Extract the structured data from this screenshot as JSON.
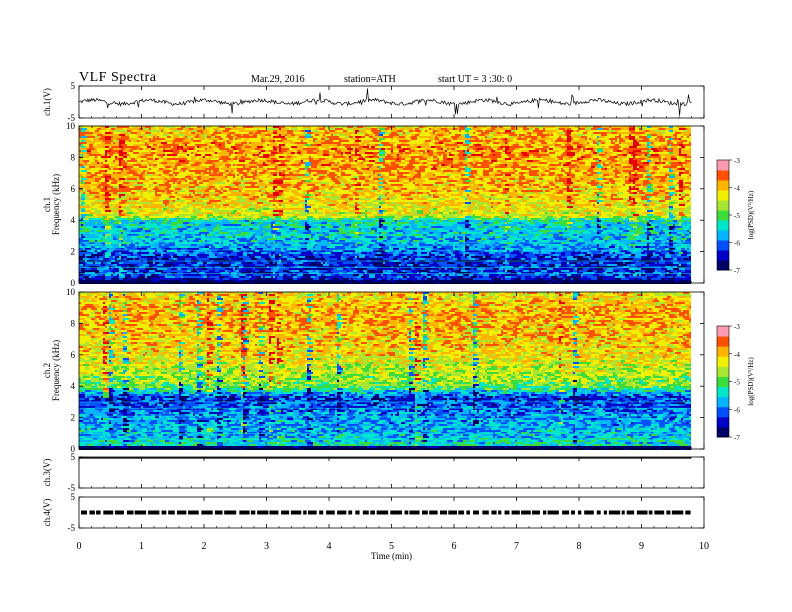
{
  "header": {
    "title": "VLF  Spectra",
    "date": "Mar.29, 2016",
    "station": "station=ATH",
    "start_ut": "start  UT  =   3  :30: 0"
  },
  "colors": {
    "axis": "#000000",
    "colormap": [
      "#000066",
      "#0000c8",
      "#0050ff",
      "#00b4ff",
      "#00e6c8",
      "#3cdc3c",
      "#a8e632",
      "#f0f000",
      "#ffb400",
      "#ff5000",
      "#e60000",
      "#ff9ab0",
      "#ffffff"
    ]
  },
  "chart_data": {
    "type": "heatmap",
    "xlabel": "Time  (min)",
    "xlim": [
      0,
      10
    ],
    "xticks": [
      "0",
      "1",
      "2",
      "3",
      "4",
      "5",
      "6",
      "7",
      "8",
      "9",
      "10"
    ],
    "panels": [
      {
        "id": "ch1v",
        "kind": "waveform",
        "ylabel": "ch.1(V)",
        "ylim": [
          -5,
          5
        ],
        "yticks": [
          "5",
          "-5"
        ],
        "trace_mean": 0,
        "data_end_min": 9.8
      },
      {
        "id": "ch1spec",
        "kind": "spectrogram",
        "ylabel": "ch.1\nFrequency  (kHz)",
        "ylabel_lines": [
          "ch.1",
          "Frequency  (kHz)"
        ],
        "ylim": [
          0,
          10
        ],
        "yticks": [
          "0",
          "2",
          "4",
          "6",
          "8",
          "10"
        ],
        "data_end_min": 9.8,
        "profile": [
          {
            "f": 0,
            "log_psd": -7
          },
          {
            "f": 0.5,
            "log_psd": -6.2
          },
          {
            "f": 1.5,
            "log_psd": -6.4
          },
          {
            "f": 2.5,
            "log_psd": -5.7
          },
          {
            "f": 4.0,
            "log_psd": -5.4
          },
          {
            "f": 4.3,
            "log_psd": -4.4
          },
          {
            "f": 6.0,
            "log_psd": -4.0
          },
          {
            "f": 8.5,
            "log_psd": -3.8
          },
          {
            "f": 10,
            "log_psd": -4.1
          }
        ]
      },
      {
        "id": "ch2spec",
        "kind": "spectrogram",
        "ylabel": "ch.2\nFrequency  (kHz)",
        "ylabel_lines": [
          "ch.2",
          "Frequency  (kHz)"
        ],
        "ylim": [
          0,
          10
        ],
        "yticks": [
          "0",
          "2",
          "4",
          "6",
          "8",
          "10"
        ],
        "data_end_min": 9.8,
        "profile": [
          {
            "f": 0,
            "log_psd": -5.2
          },
          {
            "f": 0.8,
            "log_psd": -5.6
          },
          {
            "f": 2.0,
            "log_psd": -5.8
          },
          {
            "f": 3.3,
            "log_psd": -6.3
          },
          {
            "f": 4.0,
            "log_psd": -4.9
          },
          {
            "f": 6.0,
            "log_psd": -4.2
          },
          {
            "f": 8.5,
            "log_psd": -3.9
          },
          {
            "f": 10,
            "log_psd": -4.2
          }
        ]
      },
      {
        "id": "ch3v",
        "kind": "waveform",
        "ylabel": "ch.3(V)",
        "ylim": [
          -5,
          5
        ],
        "yticks": [
          "5",
          "-5"
        ],
        "trace_mean": 5,
        "data_end_min": 9.8
      },
      {
        "id": "ch4v",
        "kind": "waveform",
        "ylabel": "ch.4(V)",
        "ylim": [
          -5,
          5
        ],
        "yticks": [
          "5",
          "-5"
        ],
        "trace_mean": 0,
        "data_end_min": 9.8
      }
    ],
    "colorbars": [
      {
        "label": "log(PSD)(V²/Hz)",
        "range": [
          -7,
          -3
        ],
        "ticks": [
          "-7",
          "-6",
          "-5",
          "-4",
          "-3"
        ]
      },
      {
        "label": "log(PSD)(V²/Hz)",
        "range": [
          -7,
          -3
        ],
        "ticks": [
          "-7",
          "-6",
          "-5",
          "-4",
          "-3"
        ]
      }
    ]
  }
}
